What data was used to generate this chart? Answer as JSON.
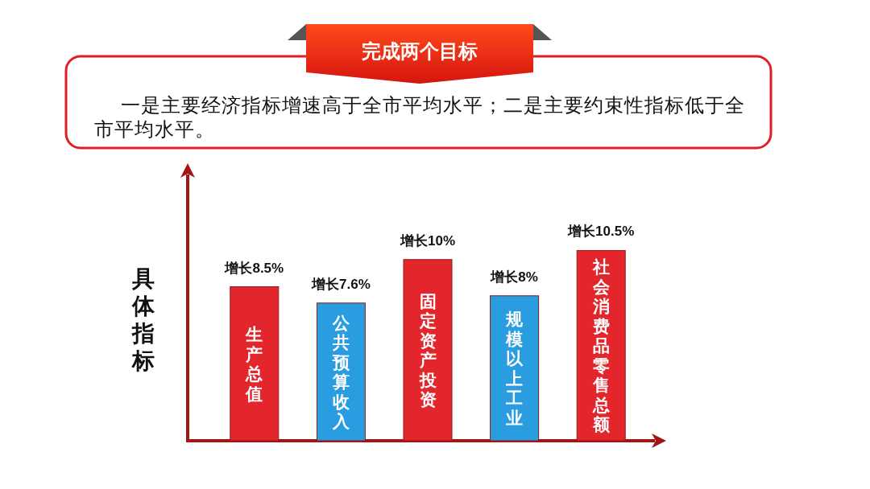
{
  "chart_data": {
    "type": "bar",
    "title": "完成两个目标",
    "annotations": [
      "一是主要经济指标增速高于全市平均水平；二是主要约束性指标低于全市平均水平。"
    ],
    "ylabel": "具体指标",
    "categories": [
      "生产总值",
      "公共预算收入",
      "固定资产投资",
      "规模以上工业",
      "社会消费品零售总额"
    ],
    "values": [
      8.5,
      7.6,
      10,
      8,
      10.5
    ],
    "colors": [
      "#e3262c",
      "#2a9de0",
      "#e3262c",
      "#2a9de0",
      "#e3262c"
    ],
    "value_labels": [
      "增长8.5%",
      "增长7.6%",
      "增长10%",
      "增长8%",
      "增长10.5%"
    ]
  }
}
